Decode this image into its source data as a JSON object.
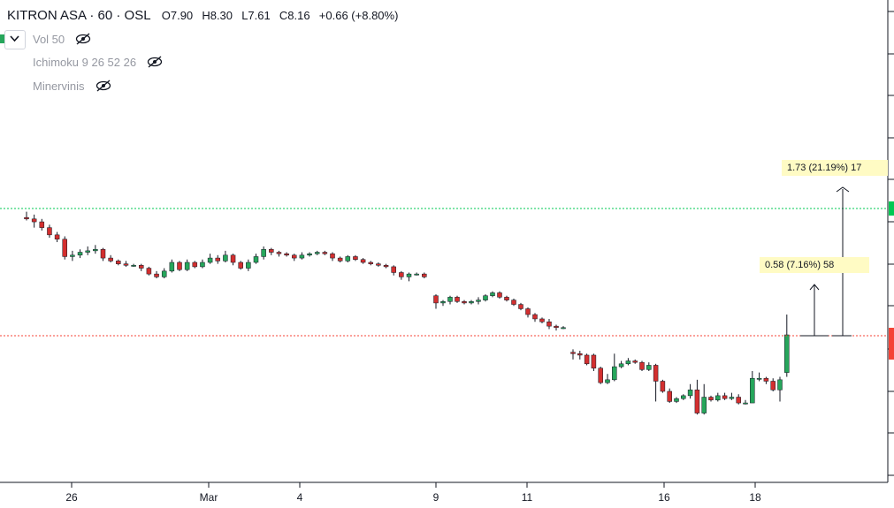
{
  "header": {
    "symbol": "KITRON ASA · 60 · OSL",
    "open": "O7.90",
    "high": "H8.30",
    "low": "L7.61",
    "close": "C8.16",
    "change": "+0.66 (+8.80%)"
  },
  "indicators": [
    {
      "label": "Vol 50",
      "icon": "eye-off-icon"
    },
    {
      "label": "Ichimoku 9 26 52 26",
      "icon": "eye-off-icon"
    },
    {
      "label": "Minervinis",
      "icon": "eye-off-icon"
    }
  ],
  "colors": {
    "up": "#26a65b",
    "down": "#d32f2f",
    "green_line": "#00c853",
    "red_line": "#f44336",
    "label_bg": "#fffbc4"
  },
  "chart_data": {
    "type": "candlestick",
    "x_tick_labels": [
      "26",
      "Mar",
      "4",
      "9",
      "11",
      "16",
      "18"
    ],
    "horizontal_lines": [
      {
        "color": "green",
        "style": "dotted"
      },
      {
        "color": "red",
        "style": "dotted"
      }
    ],
    "measure_labels": [
      "0.58 (7.16%) 58",
      "1.73 (21.19%) 17"
    ],
    "candles": [
      [
        8.97,
        8.96,
        9.01,
        8.95
      ],
      [
        8.96,
        8.94,
        8.99,
        8.9
      ],
      [
        8.94,
        8.9,
        8.96,
        8.88
      ],
      [
        8.9,
        8.85,
        8.92,
        8.83
      ],
      [
        8.85,
        8.82,
        8.87,
        8.8
      ],
      [
        8.82,
        8.7,
        8.84,
        8.68
      ],
      [
        8.7,
        8.71,
        8.74,
        8.67
      ],
      [
        8.71,
        8.73,
        8.75,
        8.69
      ],
      [
        8.73,
        8.74,
        8.77,
        8.71
      ],
      [
        8.74,
        8.75,
        8.78,
        8.72
      ],
      [
        8.75,
        8.69,
        8.76,
        8.67
      ],
      [
        8.69,
        8.67,
        8.71,
        8.66
      ],
      [
        8.67,
        8.65,
        8.68,
        8.64
      ],
      [
        8.65,
        8.64,
        8.67,
        8.63
      ],
      [
        8.64,
        8.64,
        8.65,
        8.63
      ],
      [
        8.64,
        8.62,
        8.65,
        8.6
      ],
      [
        8.62,
        8.58,
        8.63,
        8.57
      ],
      [
        8.58,
        8.56,
        8.6,
        8.55
      ],
      [
        8.56,
        8.6,
        8.62,
        8.55
      ],
      [
        8.6,
        8.66,
        8.68,
        8.59
      ],
      [
        8.66,
        8.61,
        8.67,
        8.6
      ],
      [
        8.61,
        8.66,
        8.68,
        8.6
      ],
      [
        8.66,
        8.63,
        8.67,
        8.62
      ],
      [
        8.63,
        8.66,
        8.68,
        8.62
      ],
      [
        8.66,
        8.69,
        8.72,
        8.65
      ],
      [
        8.69,
        8.67,
        8.71,
        8.65
      ],
      [
        8.67,
        8.71,
        8.74,
        8.66
      ],
      [
        8.71,
        8.66,
        8.72,
        8.64
      ],
      [
        8.66,
        8.62,
        8.67,
        8.61
      ],
      [
        8.62,
        8.66,
        8.68,
        8.6
      ],
      [
        8.66,
        8.7,
        8.72,
        8.65
      ],
      [
        8.7,
        8.75,
        8.77,
        8.68
      ],
      [
        8.75,
        8.73,
        8.76,
        8.71
      ],
      [
        8.73,
        8.72,
        8.74,
        8.7
      ],
      [
        8.72,
        8.71,
        8.73,
        8.7
      ],
      [
        8.71,
        8.69,
        8.72,
        8.67
      ],
      [
        8.69,
        8.71,
        8.73,
        8.68
      ],
      [
        8.71,
        8.72,
        8.73,
        8.7
      ],
      [
        8.72,
        8.73,
        8.74,
        8.71
      ],
      [
        8.73,
        8.72,
        8.74,
        8.71
      ],
      [
        8.72,
        8.69,
        8.73,
        8.67
      ],
      [
        8.69,
        8.67,
        8.7,
        8.66
      ],
      [
        8.67,
        8.7,
        8.71,
        8.66
      ],
      [
        8.7,
        8.68,
        8.71,
        8.67
      ],
      [
        8.68,
        8.66,
        8.69,
        8.65
      ],
      [
        8.66,
        8.65,
        8.67,
        8.64
      ],
      [
        8.65,
        8.64,
        8.66,
        8.63
      ],
      [
        8.64,
        8.63,
        8.65,
        8.62
      ],
      [
        8.63,
        8.59,
        8.64,
        8.57
      ],
      [
        8.59,
        8.56,
        8.6,
        8.54
      ],
      [
        8.56,
        8.58,
        8.59,
        8.53
      ],
      [
        8.58,
        8.58,
        8.59,
        8.57
      ],
      [
        8.58,
        8.56,
        8.59,
        8.55
      ],
      [
        8.43,
        8.38,
        8.44,
        8.34
      ],
      [
        8.38,
        8.39,
        8.4,
        8.36
      ],
      [
        8.39,
        8.42,
        8.43,
        8.37
      ],
      [
        8.42,
        8.39,
        8.43,
        8.38
      ],
      [
        8.39,
        8.38,
        8.4,
        8.37
      ],
      [
        8.38,
        8.39,
        8.4,
        8.37
      ],
      [
        8.39,
        8.4,
        8.42,
        8.37
      ],
      [
        8.4,
        8.43,
        8.44,
        8.39
      ],
      [
        8.43,
        8.45,
        8.46,
        8.42
      ],
      [
        8.45,
        8.42,
        8.46,
        8.41
      ],
      [
        8.42,
        8.4,
        8.43,
        8.39
      ],
      [
        8.4,
        8.37,
        8.41,
        8.36
      ],
      [
        8.37,
        8.34,
        8.38,
        8.33
      ],
      [
        8.34,
        8.3,
        8.35,
        8.28
      ],
      [
        8.3,
        8.27,
        8.31,
        8.25
      ],
      [
        8.27,
        8.25,
        8.28,
        8.24
      ],
      [
        8.25,
        8.22,
        8.27,
        8.2
      ],
      [
        8.22,
        8.21,
        8.23,
        8.19
      ],
      [
        8.21,
        8.21,
        8.22,
        8.2
      ],
      [
        8.04,
        8.03,
        8.06,
        7.99
      ],
      [
        8.03,
        8.02,
        8.05,
        7.99
      ],
      [
        8.02,
        7.96,
        8.03,
        7.95
      ],
      [
        8.02,
        7.93,
        8.03,
        7.91
      ],
      [
        7.93,
        7.83,
        7.94,
        7.82
      ],
      [
        7.83,
        7.85,
        7.89,
        7.82
      ],
      [
        7.85,
        7.94,
        8.03,
        7.84
      ],
      [
        7.94,
        7.96,
        7.98,
        7.93
      ],
      [
        7.96,
        7.98,
        8.0,
        7.95
      ],
      [
        7.98,
        7.97,
        7.99,
        7.96
      ],
      [
        7.97,
        7.92,
        7.98,
        7.91
      ],
      [
        7.92,
        7.95,
        7.97,
        7.91
      ],
      [
        7.95,
        7.84,
        7.96,
        7.7
      ],
      [
        7.84,
        7.77,
        7.85,
        7.76
      ],
      [
        7.77,
        7.7,
        7.79,
        7.69
      ],
      [
        7.7,
        7.72,
        7.73,
        7.69
      ],
      [
        7.72,
        7.74,
        7.75,
        7.71
      ],
      [
        7.74,
        7.78,
        7.82,
        7.72
      ],
      [
        7.78,
        7.62,
        7.85,
        7.61
      ],
      [
        7.62,
        7.73,
        7.82,
        7.61
      ],
      [
        7.73,
        7.71,
        7.74,
        7.7
      ],
      [
        7.71,
        7.74,
        7.76,
        7.7
      ],
      [
        7.74,
        7.72,
        7.76,
        7.71
      ],
      [
        7.72,
        7.73,
        7.76,
        7.71
      ],
      [
        7.73,
        7.69,
        7.75,
        7.68
      ],
      [
        7.69,
        7.69,
        7.71,
        7.68
      ],
      [
        7.69,
        7.86,
        7.91,
        7.69
      ],
      [
        7.86,
        7.86,
        7.9,
        7.84
      ],
      [
        7.86,
        7.84,
        7.87,
        7.82
      ],
      [
        7.84,
        7.78,
        7.86,
        7.77
      ],
      [
        7.78,
        7.85,
        7.87,
        7.7
      ],
      [
        7.9,
        8.16,
        8.3,
        7.87
      ]
    ]
  }
}
